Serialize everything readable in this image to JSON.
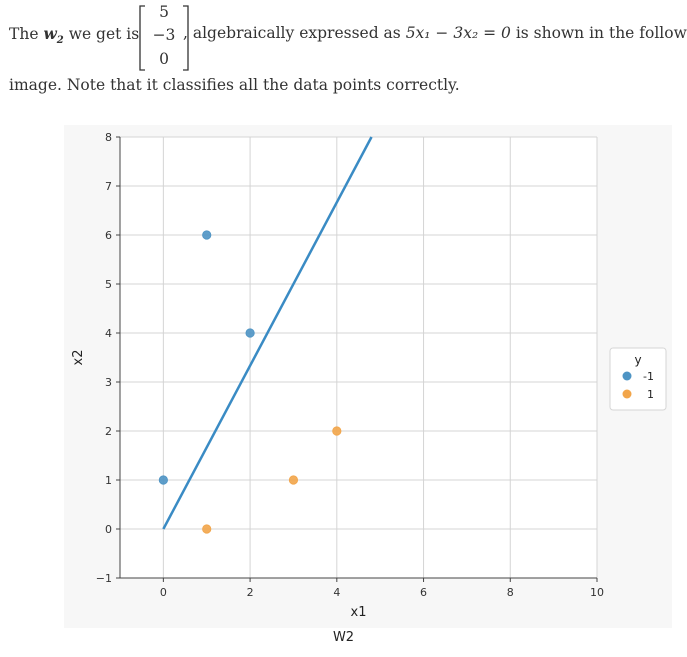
{
  "intro": {
    "prefix": "The",
    "w_symbol": "w",
    "w_subscript": "2",
    "we_get_is": "we get is",
    "matrix": [
      "5",
      "−3",
      "0"
    ],
    "middle": ", algebraically expressed as",
    "equation": "5x₁ − 3x₂ = 0",
    "suffix": "is shown in the following",
    "line2": "image. Note that it classifies all the data points correctly."
  },
  "caption": "W2",
  "colors": {
    "neg": "#4e94c4",
    "pos": "#f2a54a",
    "line": "#3a8bc4",
    "grid": "#d4d4d4",
    "axis": "#444444"
  },
  "chart_data": {
    "type": "scatter",
    "xlabel": "x1",
    "ylabel": "x2",
    "xlim": [
      -1,
      10
    ],
    "ylim": [
      -1,
      8
    ],
    "xticks": [
      0,
      2,
      4,
      6,
      8,
      10
    ],
    "yticks": [
      -1,
      0,
      1,
      2,
      3,
      4,
      5,
      6,
      7,
      8
    ],
    "grid": true,
    "legend": {
      "title": "y",
      "placement": "right"
    },
    "series": [
      {
        "name": "-1",
        "color": "#4e94c4",
        "points": [
          [
            0,
            1
          ],
          [
            2,
            4
          ],
          [
            1,
            6
          ]
        ]
      },
      {
        "name": "1",
        "color": "#f2a54a",
        "points": [
          [
            1,
            0
          ],
          [
            3,
            1
          ],
          [
            4,
            2
          ]
        ]
      }
    ],
    "decision_boundary": {
      "equation": "5x1 - 3x2 = 0",
      "from": [
        0,
        0
      ],
      "to": [
        4.8,
        8
      ]
    }
  }
}
